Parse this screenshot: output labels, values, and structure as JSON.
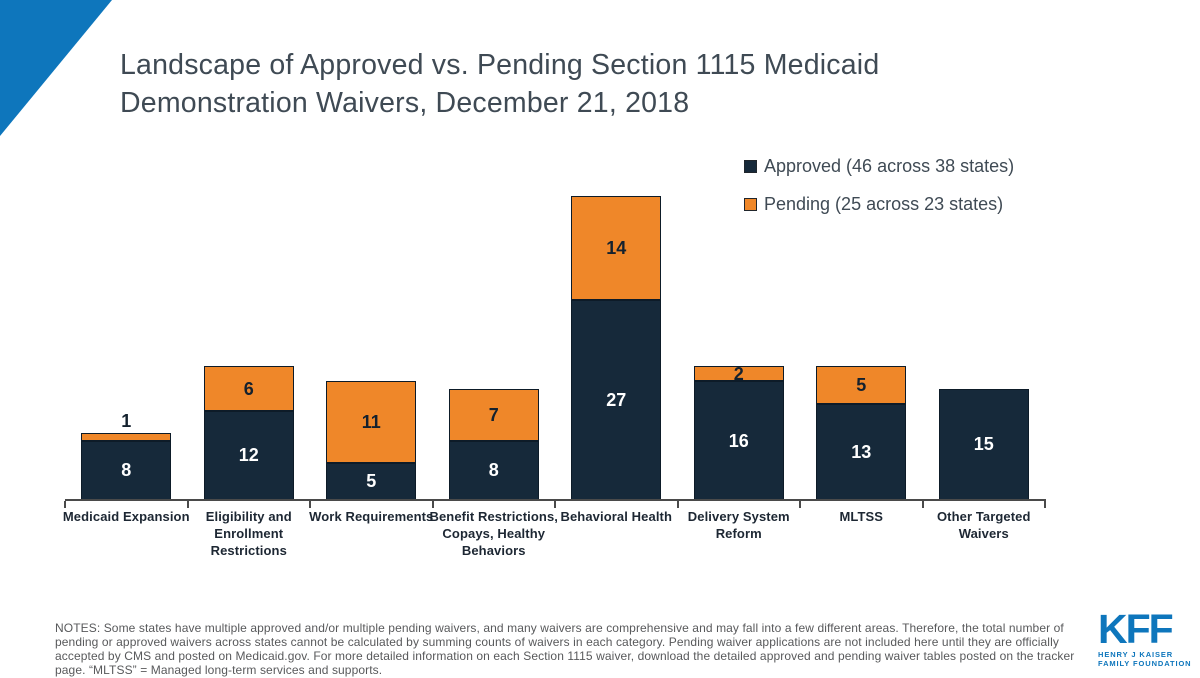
{
  "slide": {
    "title": "Landscape of Approved vs. Pending Section 1115 Medicaid Demonstration Waivers, December 21, 2018",
    "notes": "NOTES: Some states have multiple approved and/or multiple pending waivers, and many waivers are comprehensive and may fall into a few different areas. Therefore, the total number of pending or approved waivers across states cannot be calculated by summing counts of waivers in each category. Pending waiver applications are not included here until they are officially accepted by CMS and posted on Medicaid.gov. For more detailed information on each Section 1115 waiver, download the detailed approved and pending waiver tables posted on the tracker page. “MLTSS” = Managed long-term services and supports.",
    "logo": {
      "name": "KFF",
      "subtitle_line1": "HENRY J KAISER",
      "subtitle_line2": "FAMILY FOUNDATION"
    }
  },
  "colors": {
    "brand_blue": "#0e76bc",
    "approved_navy": "#16293a",
    "pending_orange": "#ef8729",
    "title_text": "#3f4a54",
    "notes_text": "#58595b",
    "axis": "#4a4a4a",
    "category_text": "#1d2733",
    "label_on_navy": "#ffffff",
    "label_on_orange": "#14212e"
  },
  "chart_data": {
    "type": "bar",
    "stacked": true,
    "title": "Landscape of Approved vs. Pending Section 1115 Medicaid Demonstration Waivers, December 21, 2018",
    "categories": [
      "Medicaid Expansion",
      "Eligibility and Enrollment Restrictions",
      "Work Requirements",
      "Benefit Restrictions, Copays, Healthy Behaviors",
      "Behavioral Health",
      "Delivery System Reform",
      "MLTSS",
      "Other Targeted Waivers"
    ],
    "series": [
      {
        "name": "Approved (46 across 38 states)",
        "color": "#16293a",
        "values": [
          8,
          12,
          5,
          8,
          27,
          16,
          13,
          15
        ]
      },
      {
        "name": "Pending (25 across 23 states)",
        "color": "#ef8729",
        "values": [
          1,
          6,
          11,
          7,
          14,
          2,
          5,
          0
        ]
      }
    ],
    "totals": [
      9,
      18,
      16,
      15,
      41,
      18,
      18,
      15
    ],
    "xlabel": "",
    "ylabel": "",
    "ylim": [
      0,
      41
    ],
    "grid": false,
    "value_labels": true,
    "legend_position": "top-right"
  }
}
